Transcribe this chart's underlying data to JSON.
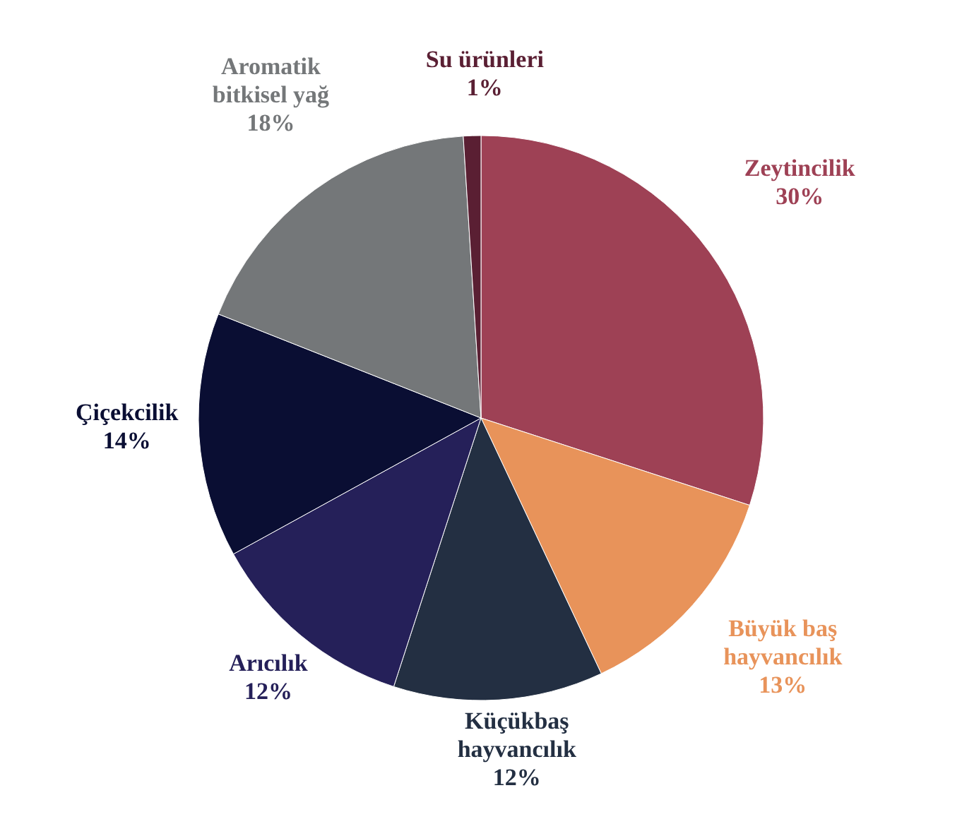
{
  "chart_data": {
    "type": "pie",
    "categories": [
      "Zeytincilik",
      "Büyük baş hayvancılık",
      "Küçükbaş hayvancılık",
      "Arıcılık",
      "Çiçekcilik",
      "Aromatik bitkisel yağ",
      "Su ürünleri"
    ],
    "values": [
      30,
      13,
      12,
      12,
      14,
      18,
      1
    ],
    "value_labels": [
      "30%",
      "13%",
      "12%",
      "12%",
      "14%",
      "18%",
      "1%"
    ],
    "colors": [
      "#9e4155",
      "#e8935a",
      "#232f42",
      "#252059",
      "#0a0e33",
      "#747779",
      "#5a1f33"
    ]
  }
}
